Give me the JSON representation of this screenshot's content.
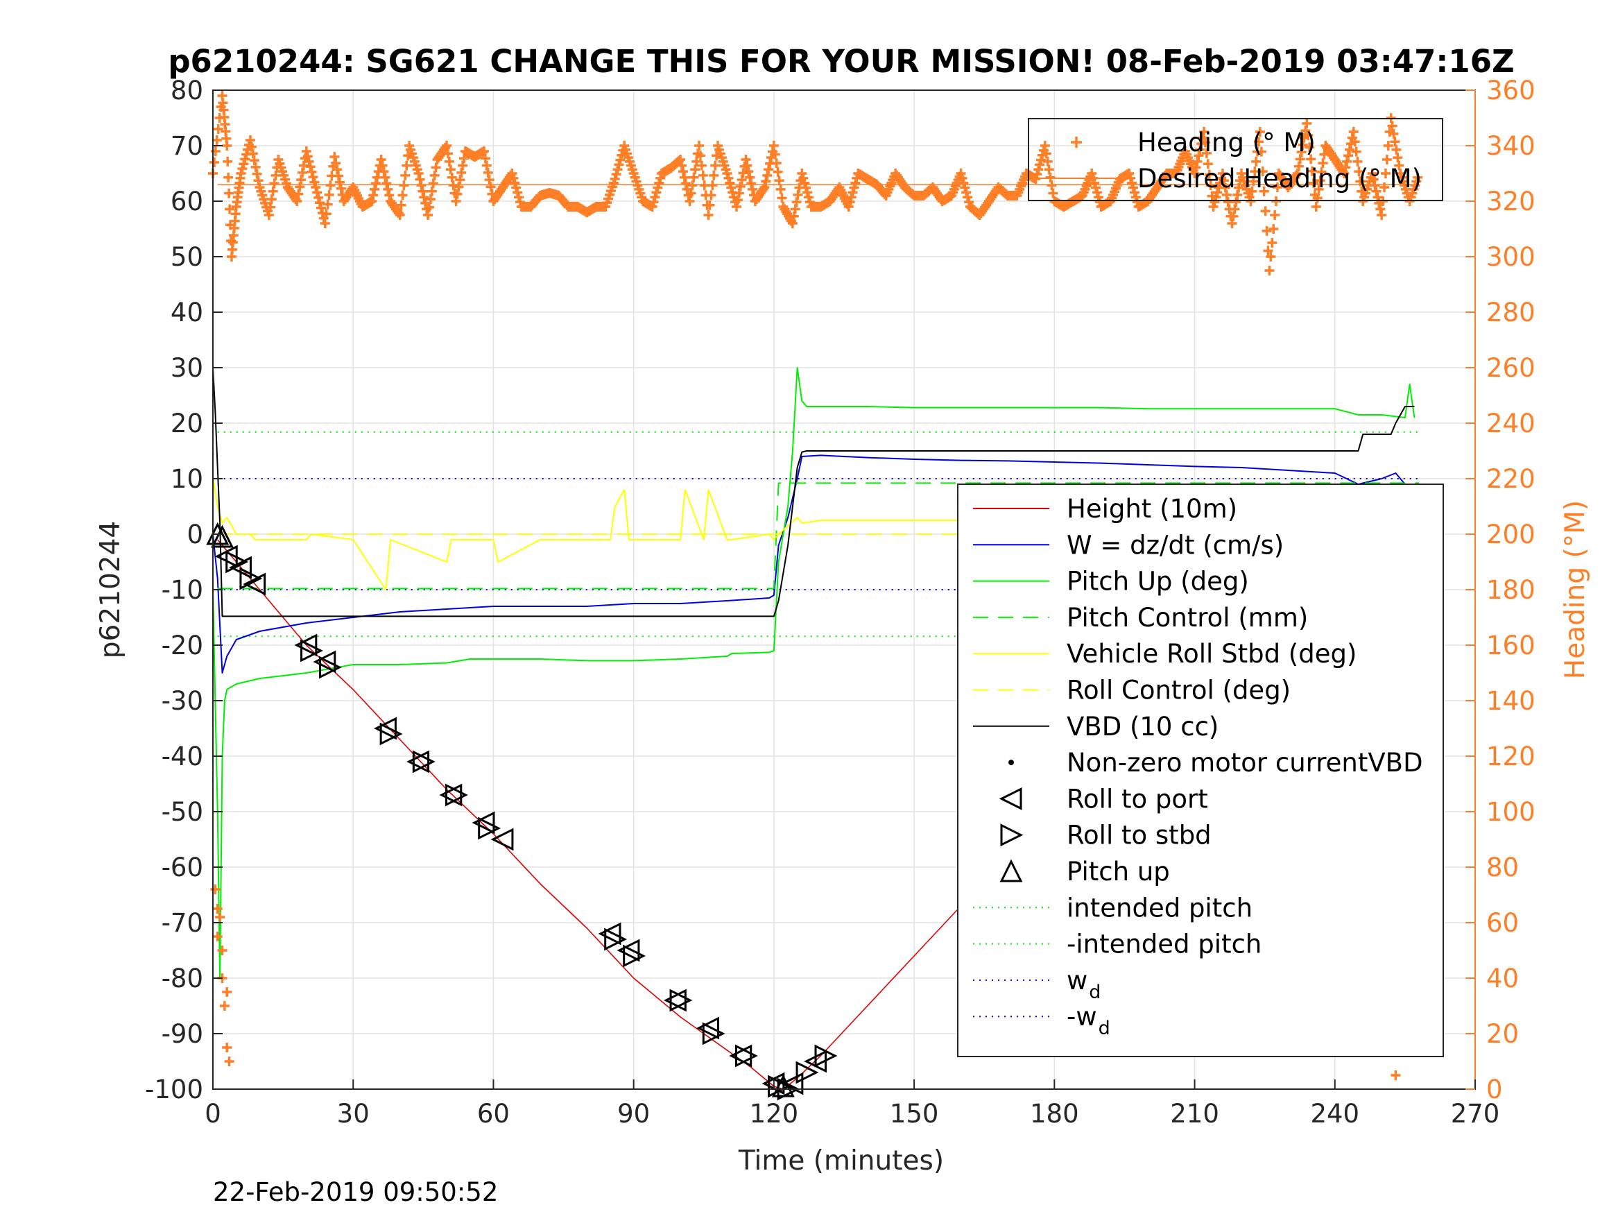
{
  "chart_data": {
    "type": "line",
    "title": "p6210244: SG621 CHANGE THIS FOR YOUR MISSION! 08-Feb-2019 03:47:16Z",
    "xlabel": "Time (minutes)",
    "ylabel": "p6210244",
    "y2label": "Heading (°M)",
    "footer": "22-Feb-2019 09:50:52",
    "xlim": [
      0,
      270
    ],
    "ylim": [
      -100,
      80
    ],
    "y2lim": [
      0,
      360
    ],
    "xticks": [
      0,
      30,
      60,
      90,
      120,
      150,
      180,
      210,
      240,
      270
    ],
    "yticks": [
      -100,
      -90,
      -80,
      -70,
      -60,
      -50,
      -40,
      -30,
      -20,
      -10,
      0,
      10,
      20,
      30,
      40,
      50,
      60,
      70,
      80
    ],
    "y2ticks": [
      0,
      20,
      40,
      60,
      80,
      100,
      120,
      140,
      160,
      180,
      200,
      220,
      240,
      260,
      280,
      300,
      320,
      340,
      360
    ],
    "grid": true,
    "colors": {
      "heading": "#ff7f27",
      "height": "#e00000",
      "w": "#0000dd",
      "pitch": "#00ee00",
      "roll": "#ffff00",
      "vbd": "#000000",
      "grid": "#e3e3e3",
      "axis": "#262626"
    },
    "series": [
      {
        "name": "Height (10m)",
        "x": [
          1,
          5,
          10,
          20,
          30,
          40,
          50,
          60,
          70,
          80,
          90,
          100,
          110,
          115,
          120,
          122,
          125,
          130,
          140,
          150,
          160,
          170,
          180,
          190,
          200,
          210,
          220,
          230,
          240,
          250,
          255,
          258
        ],
        "y": [
          -1,
          -5,
          -10,
          -20,
          -28,
          -37,
          -46,
          -54,
          -63,
          -71,
          -80,
          -87,
          -93,
          -96,
          -99.5,
          -100,
          -98,
          -94,
          -85,
          -76,
          -67,
          -58,
          -50,
          -41,
          -33,
          -25,
          -17,
          -10,
          -6,
          -3,
          -1,
          0
        ]
      },
      {
        "name": "W = dz/dt (cm/s)",
        "x": [
          0,
          1,
          2,
          3,
          5,
          10,
          20,
          30,
          40,
          50,
          60,
          70,
          80,
          90,
          100,
          110,
          119,
          120,
          121,
          123,
          125,
          126,
          130,
          140,
          150,
          160,
          170,
          180,
          190,
          200,
          210,
          220,
          230,
          240,
          245,
          250,
          253,
          255,
          256,
          257
        ],
        "y": [
          0,
          -8,
          -25,
          -22,
          -19,
          -17.5,
          -16,
          -15,
          -14,
          -13.5,
          -13,
          -13,
          -13,
          -12.5,
          -12.5,
          -12,
          -11.5,
          -11,
          -2,
          3,
          10,
          14,
          14.2,
          13.8,
          13.5,
          13.3,
          13.2,
          13,
          12.8,
          12.5,
          12.2,
          12,
          11.5,
          11,
          9,
          10,
          11,
          9,
          7,
          9
        ]
      },
      {
        "name": "Pitch Up (deg)",
        "x": [
          0,
          1,
          1.5,
          2,
          2.5,
          3,
          5,
          10,
          20,
          30,
          40,
          50,
          55,
          60,
          70,
          80,
          90,
          100,
          110,
          111,
          119,
          120,
          121,
          123,
          124,
          125,
          126,
          127,
          130,
          140,
          150,
          160,
          170,
          180,
          190,
          200,
          210,
          220,
          230,
          240,
          245,
          250,
          255,
          256,
          257
        ],
        "y": [
          -10,
          -50,
          -80,
          -40,
          -30,
          -28,
          -27,
          -26,
          -25,
          -23.5,
          -23.5,
          -23.2,
          -22.5,
          -22.5,
          -22.5,
          -22.8,
          -22.8,
          -22.5,
          -22,
          -21.5,
          -21.3,
          -21,
          -5,
          5,
          15,
          30,
          24,
          23,
          23,
          23,
          22.8,
          22.8,
          22.8,
          22.8,
          22.8,
          22.6,
          22.6,
          22.6,
          22.6,
          22.6,
          21.5,
          21.5,
          21,
          27,
          21
        ]
      },
      {
        "name": "Pitch Control (mm)",
        "x": [
          1,
          120,
          121,
          258
        ],
        "y": [
          -9.8,
          -9.8,
          9.2,
          9.2
        ]
      },
      {
        "name": "Vehicle Roll Stbd (deg)",
        "x": [
          0,
          1,
          2,
          3,
          5,
          8,
          9,
          20,
          21,
          30,
          37,
          38,
          50,
          51,
          60,
          61,
          70,
          85,
          86,
          88,
          89,
          100,
          101,
          105,
          106,
          110,
          111,
          119,
          120,
          121,
          125,
          126,
          130,
          140,
          150,
          160,
          170,
          180,
          190,
          200,
          210,
          220,
          228,
          229,
          240,
          245,
          246,
          250,
          251,
          252,
          253,
          255,
          257
        ],
        "y": [
          10,
          5,
          2,
          3,
          0,
          0,
          -1,
          -1,
          0,
          -1,
          -10,
          -1,
          -5,
          -1,
          -1,
          -5,
          -1,
          -1,
          5,
          8,
          -1,
          -1,
          8,
          -1,
          8,
          -1,
          -1,
          0,
          -1,
          0,
          3,
          2,
          2.5,
          2.5,
          2.5,
          2.5,
          2.5,
          2.5,
          2.5,
          2.5,
          2.5,
          2.5,
          2.5,
          5,
          2.5,
          2.5,
          -2,
          2.5,
          5,
          -2,
          2.5,
          -10,
          2
        ]
      },
      {
        "name": "Roll Control (deg)",
        "x": [
          1,
          258
        ],
        "y": [
          0,
          0
        ]
      },
      {
        "name": "VBD (10 cc)",
        "x": [
          0,
          0.5,
          1,
          1.5,
          2,
          120,
          121,
          123,
          124,
          125,
          126,
          127,
          245,
          246,
          252,
          253,
          255,
          256,
          257
        ],
        "y": [
          30,
          22,
          12,
          2,
          -14.8,
          -14.8,
          -12,
          -2,
          5,
          12,
          14.8,
          15,
          15,
          18,
          18,
          20,
          23,
          23,
          23
        ]
      },
      {
        "name": "Heading (° M)",
        "x": [
          0,
          2,
          3,
          4,
          5,
          6,
          8,
          10,
          12,
          14,
          16,
          18,
          20,
          22,
          24,
          26,
          28,
          30,
          32,
          34,
          36,
          38,
          40,
          42,
          44,
          46,
          48,
          50,
          52,
          54,
          56,
          58,
          60,
          62,
          64,
          66,
          68,
          70,
          72,
          74,
          76,
          78,
          80,
          82,
          84,
          86,
          88,
          90,
          92,
          94,
          96,
          98,
          100,
          102,
          104,
          106,
          108,
          110,
          112,
          114,
          116,
          118,
          120,
          122,
          124,
          126,
          128,
          130,
          132,
          134,
          136,
          138,
          140,
          142,
          144,
          146,
          148,
          150,
          152,
          154,
          156,
          158,
          160,
          162,
          164,
          166,
          168,
          170,
          172,
          174,
          176,
          178,
          180,
          182,
          184,
          186,
          188,
          190,
          192,
          194,
          196,
          198,
          200,
          202,
          204,
          206,
          208,
          210,
          212,
          214,
          216,
          218,
          220,
          222,
          224,
          226,
          228,
          230,
          232,
          234,
          236,
          238,
          240,
          242,
          244,
          246,
          248,
          250,
          252,
          254,
          256,
          258
        ],
        "y": [
          330,
          358,
          340,
          300,
          318,
          330,
          342,
          325,
          315,
          335,
          325,
          320,
          338,
          325,
          312,
          336,
          320,
          325,
          318,
          320,
          335,
          320,
          315,
          340,
          330,
          315,
          335,
          340,
          320,
          338,
          336,
          338,
          320,
          325,
          330,
          318,
          318,
          322,
          323,
          322,
          318,
          318,
          316,
          318,
          318,
          328,
          340,
          330,
          320,
          318,
          330,
          332,
          335,
          320,
          340,
          315,
          340,
          330,
          318,
          335,
          320,
          325,
          340,
          318,
          312,
          330,
          318,
          318,
          320,
          325,
          318,
          330,
          328,
          326,
          322,
          330,
          325,
          322,
          322,
          325,
          320,
          322,
          330,
          318,
          315,
          320,
          325,
          322,
          322,
          330,
          328,
          340,
          320,
          318,
          320,
          322,
          330,
          318,
          320,
          328,
          330,
          318,
          320,
          325,
          330,
          330,
          338,
          330,
          345,
          318,
          330,
          312,
          330,
          320,
          345,
          295,
          330,
          325,
          330,
          348,
          318,
          340,
          335,
          330,
          345,
          320,
          330,
          315,
          350,
          330,
          320,
          330
        ],
        "axis": "right"
      },
      {
        "name": "Desired Heading (° M)",
        "x": [
          1,
          258
        ],
        "y": [
          326,
          326
        ],
        "axis": "right"
      }
    ],
    "surface_heading_points": {
      "start": [
        [
          0.5,
          72
        ],
        [
          1,
          65
        ],
        [
          1.5,
          62
        ],
        [
          2,
          40
        ],
        [
          2.5,
          30
        ],
        [
          3,
          15
        ],
        [
          3.5,
          10
        ],
        [
          1,
          55
        ],
        [
          2,
          50
        ],
        [
          3,
          35
        ]
      ],
      "end": [
        [
          253,
          5
        ],
        [
          253.5,
          15
        ],
        [
          254,
          70
        ],
        [
          254.5,
          60
        ],
        [
          255,
          50
        ],
        [
          255.5,
          45
        ],
        [
          256,
          35
        ],
        [
          256.5,
          40
        ],
        [
          254,
          30
        ],
        [
          255,
          25
        ]
      ]
    },
    "reference_lines": [
      {
        "name": "intended pitch",
        "y": 18.4
      },
      {
        "name": "-intended pitch",
        "y": -18.4
      },
      {
        "name": "w_d",
        "y": 10
      },
      {
        "name": "-w_d",
        "y": -10
      }
    ],
    "markers": {
      "roll_to_port": [
        [
          3,
          -4
        ],
        [
          6,
          -6
        ],
        [
          9,
          -9
        ],
        [
          20,
          -20
        ],
        [
          24,
          -23
        ],
        [
          37,
          -35
        ],
        [
          44,
          -41
        ],
        [
          51,
          -47
        ],
        [
          58,
          -52
        ],
        [
          62,
          -55
        ],
        [
          85,
          -72
        ],
        [
          89,
          -75
        ],
        [
          99,
          -84
        ],
        [
          106,
          -89
        ],
        [
          113,
          -94
        ],
        [
          120,
          -99
        ],
        [
          124,
          -99
        ],
        [
          129,
          -95
        ],
        [
          204,
          -37
        ],
        [
          214,
          -28
        ],
        [
          224,
          -21
        ],
        [
          229,
          -18
        ],
        [
          235,
          -14
        ],
        [
          238,
          -11
        ],
        [
          244,
          -7
        ],
        [
          250,
          -4
        ],
        [
          253,
          -3
        ],
        [
          256,
          -1
        ]
      ],
      "roll_to_stbd": [
        [
          5,
          -5
        ],
        [
          8,
          -8
        ],
        [
          21,
          -21
        ],
        [
          25,
          -24
        ],
        [
          38,
          -36
        ],
        [
          45,
          -41
        ],
        [
          52,
          -47
        ],
        [
          59,
          -53
        ],
        [
          86,
          -73
        ],
        [
          90,
          -76
        ],
        [
          100,
          -84
        ],
        [
          107,
          -90
        ],
        [
          114,
          -94
        ],
        [
          121,
          -99.5
        ],
        [
          123,
          -100
        ],
        [
          127,
          -97
        ],
        [
          131,
          -94
        ],
        [
          178,
          -57
        ],
        [
          205,
          -36
        ],
        [
          215,
          -28
        ],
        [
          225,
          -20
        ],
        [
          230,
          -17
        ],
        [
          236,
          -13
        ],
        [
          239,
          -11
        ],
        [
          245,
          -7
        ],
        [
          251,
          -3
        ],
        [
          254,
          -2
        ],
        [
          258,
          0
        ]
      ],
      "pitch_up": [
        [
          1,
          0
        ],
        [
          2,
          -0.5
        ],
        [
          122,
          -99.5
        ],
        [
          257,
          0
        ]
      ]
    },
    "legend_top": [
      {
        "label": "Heading (° M)",
        "symbol": "plus",
        "color": "#ff7f27"
      },
      {
        "label": "Desired Heading (° M)",
        "symbol": "line",
        "color": "#ff7f27"
      }
    ],
    "legend_main": [
      {
        "label": "Height (10m)",
        "symbol": "line",
        "color": "#e00000"
      },
      {
        "label": "W = dz/dt (cm/s)",
        "symbol": "line",
        "color": "#0000dd"
      },
      {
        "label": "Pitch Up (deg)",
        "symbol": "line",
        "color": "#00ee00"
      },
      {
        "label": "Pitch Control (mm)",
        "symbol": "dash",
        "color": "#00ee00"
      },
      {
        "label": "Vehicle Roll Stbd (deg)",
        "symbol": "line",
        "color": "#ffff00"
      },
      {
        "label": "Roll Control (deg)",
        "symbol": "dash",
        "color": "#ffff00"
      },
      {
        "label": "VBD (10 cc)",
        "symbol": "line",
        "color": "#000000"
      },
      {
        "label": "Non-zero motor currentVBD",
        "symbol": "dot",
        "color": "#000000"
      },
      {
        "label": "Roll to port",
        "symbol": "tri-left",
        "color": "#000000"
      },
      {
        "label": "Roll to stbd",
        "symbol": "tri-right",
        "color": "#000000"
      },
      {
        "label": "Pitch up",
        "symbol": "tri-up",
        "color": "#000000"
      },
      {
        "label": "intended pitch",
        "symbol": "dotted",
        "color": "#00ee00"
      },
      {
        "label": "-intended pitch",
        "symbol": "dotted",
        "color": "#00ee00"
      },
      {
        "label": "w",
        "sub": "d",
        "symbol": "dotted",
        "color": "#0000dd"
      },
      {
        "label": "-w",
        "sub": "d",
        "symbol": "dotted",
        "color": "#0000dd"
      }
    ],
    "legend_placement": [
      "top-right",
      "right"
    ]
  }
}
